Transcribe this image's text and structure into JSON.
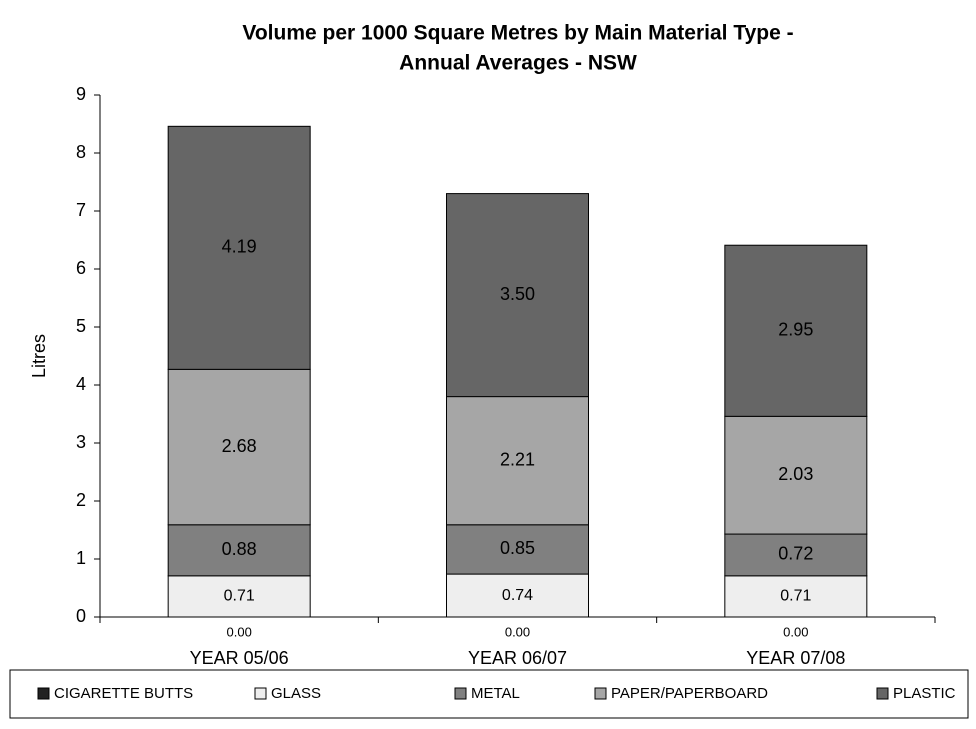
{
  "chart_data": {
    "type": "stacked_bar",
    "title": "Volume per 1000 Square Metres by Main Material Type -",
    "subtitle": "Annual Averages - NSW",
    "y_label": "Litres",
    "categories": [
      "YEAR 05/06",
      "YEAR 06/07",
      "YEAR 07/08"
    ],
    "series": [
      {
        "name": "CIGARETTE BUTTS",
        "color": "#222222",
        "label_color": "#000000",
        "values": [
          0,
          0,
          0
        ],
        "value_labels": [
          "0.00",
          "0.00",
          "0.00"
        ]
      },
      {
        "name": "GLASS",
        "color": "#eeeeee",
        "label_color": "#000000",
        "values": [
          0.71,
          0.74,
          0.71
        ],
        "value_labels": [
          "0.71",
          "0.74",
          "0.71"
        ]
      },
      {
        "name": "METAL",
        "color": "#808080",
        "label_color": "#ffffff",
        "values": [
          0.88,
          0.85,
          0.72
        ],
        "value_labels": [
          "0.88",
          "0.85",
          "0.72"
        ]
      },
      {
        "name": "PAPER/PAPERBOARD",
        "color": "#a6a6a6",
        "label_color": "#ffffff",
        "values": [
          2.68,
          2.21,
          2.03
        ],
        "value_labels": [
          "2.68",
          "2.21",
          "2.03"
        ]
      },
      {
        "name": "PLASTIC",
        "color": "#666666",
        "label_color": "#ffffff",
        "values": [
          4.19,
          3.5,
          2.95
        ],
        "value_labels": [
          "4.19",
          "3.50",
          "2.95"
        ]
      }
    ],
    "ylim": [
      0,
      9
    ],
    "yticks": [
      0,
      1,
      2,
      3,
      4,
      5,
      6,
      7,
      8,
      9
    ],
    "grid": false,
    "legend": "bottom"
  }
}
